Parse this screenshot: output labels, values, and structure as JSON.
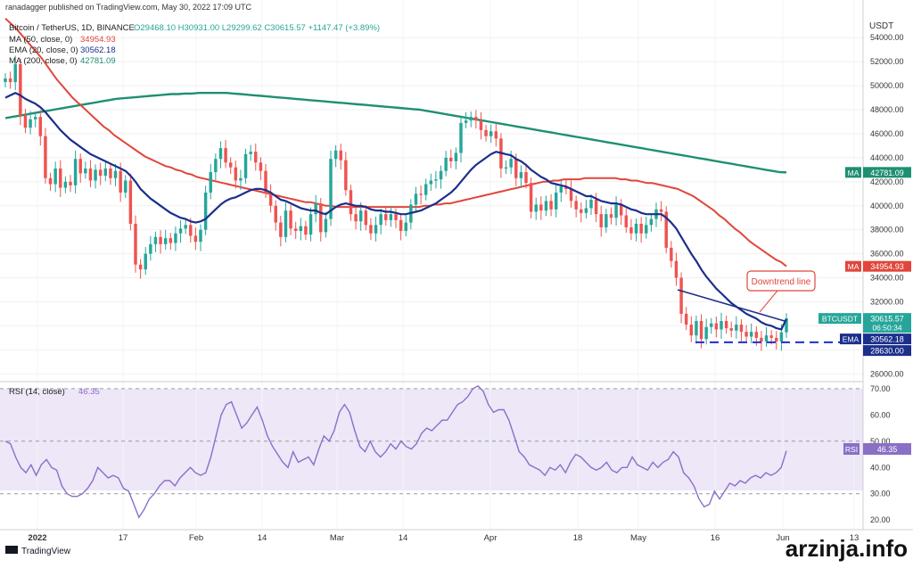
{
  "header": {
    "publisher": "ranadagger published on TradingView.com, May 30, 2022 17:09 UTC"
  },
  "legend": {
    "symbol": "Bitcoin / TetherUS, 1D, BINANCE",
    "ohlc": "O29468.10  H30931.00  L29299.62  C30615.57  +1147.47 (+3.89%)",
    "ma50": {
      "label": "MA (50, close, 0)",
      "value": "34954.93",
      "color": "#e0463a"
    },
    "ema20": {
      "label": "EMA (20, close, 0)",
      "value": "30562.18",
      "color": "#1b2f8c"
    },
    "ma200": {
      "label": "MA (200, close, 0)",
      "value": "42781.09",
      "color": "#1f8f72"
    }
  },
  "rsi_legend": {
    "label": "RSI (14, close)",
    "value": "46.35",
    "color": "#8a6fc7"
  },
  "annotation": {
    "label": "Downtrend line",
    "color": "#e0463a"
  },
  "axis": {
    "unit": "USDT",
    "x_ticks": [
      "2022",
      "17",
      "Feb",
      "14",
      "Mar",
      "14",
      "Apr",
      "18",
      "May",
      "16",
      "Jun",
      "13"
    ],
    "price_ticks": [
      "54000.00",
      "52000.00",
      "50000.00",
      "48000.00",
      "46000.00",
      "44000.00",
      "42000.00",
      "40000.00",
      "38000.00",
      "36000.00",
      "34000.00",
      "32000.00",
      "30000.00",
      "28000.00",
      "26000.00"
    ],
    "rsi_ticks": [
      "70.00",
      "60.00",
      "50.00",
      "40.00",
      "30.00",
      "20.00"
    ]
  },
  "price_labels": [
    {
      "tag": "MA",
      "value": "42781.09",
      "color": "#1f8f72"
    },
    {
      "tag": "MA",
      "value": "34954.93",
      "color": "#e0463a"
    },
    {
      "tag": "BTCUSDT",
      "value": "30615.57",
      "sub": "06:50:34",
      "color": "#26a69a"
    },
    {
      "tag": "EMA",
      "value": "30562.18",
      "color": "#1b2f8c"
    },
    {
      "tag": "",
      "value": "28630.00",
      "color": "#1b2f8c"
    }
  ],
  "rsi_label": {
    "tag": "RSI",
    "value": "46.35",
    "color": "#8a6fc7"
  },
  "footer": {
    "brand": "TradingView",
    "watermark": "arzinja.info"
  },
  "colors": {
    "up": "#26a69a",
    "down": "#ef5350",
    "support": "#1b2fd0",
    "downtrend": "#1b2f8c"
  },
  "chart_data": {
    "type": "line",
    "note_type": "candlestick",
    "unit": "USDT",
    "ylim": [
      25500,
      55800
    ],
    "rsi_ylim": [
      17,
      72
    ],
    "candles_close": [
      50600,
      50300,
      51800,
      47500,
      46500,
      47200,
      47400,
      45800,
      42300,
      41800,
      43100,
      41500,
      42000,
      41700,
      43900,
      42700,
      43100,
      42100,
      43000,
      42500,
      43100,
      42300,
      42900,
      41100,
      42100,
      38500,
      35100,
      34700,
      36000,
      36800,
      37400,
      36800,
      37300,
      36900,
      37700,
      38100,
      38400,
      37500,
      37000,
      38000,
      41100,
      42800,
      43900,
      44800,
      43600,
      43200,
      42100,
      42300,
      44300,
      44500,
      43600,
      42900,
      41100,
      40000,
      38600,
      37400,
      39600,
      38100,
      37900,
      38300,
      37600,
      39300,
      40200,
      37800,
      38900,
      43900,
      44600,
      43800,
      41300,
      39300,
      38700,
      39600,
      38400,
      37700,
      38400,
      39300,
      38800,
      39300,
      38800,
      37900,
      38600,
      40100,
      41000,
      40900,
      41800,
      42100,
      42200,
      42900,
      44000,
      43700,
      44400,
      46900,
      47100,
      47400,
      47100,
      46300,
      45800,
      46200,
      45600,
      43100,
      43200,
      43900,
      42300,
      42800,
      41900,
      39500,
      40100,
      39600,
      40400,
      39700,
      41100,
      41600,
      41400,
      40400,
      39700,
      39400,
      39800,
      40500,
      39300,
      38200,
      39300,
      39000,
      40100,
      39200,
      38200,
      37700,
      38500,
      37700,
      38400,
      38900,
      39700,
      39500,
      36500,
      35400,
      34000,
      31000,
      30100,
      29200,
      30400,
      28900,
      29900,
      30200,
      29700,
      30400,
      29800,
      29600,
      30100,
      29500,
      29100,
      29500,
      29000,
      28700,
      29200,
      29000,
      28700,
      29460,
      30615
    ],
    "ema20_close": [
      49000,
      49200,
      49400,
      49200,
      48900,
      48700,
      48500,
      48200,
      47800,
      47300,
      46800,
      46300,
      45900,
      45500,
      45200,
      44900,
      44600,
      44300,
      44100,
      43900,
      43700,
      43500,
      43300,
      43100,
      42900,
      42500,
      42000,
      41400,
      41000,
      40600,
      40300,
      40000,
      39700,
      39400,
      39200,
      39000,
      38900,
      38700,
      38600,
      38700,
      38900,
      39300,
      39700,
      40100,
      40400,
      40600,
      40700,
      40900,
      41100,
      41300,
      41400,
      41400,
      41300,
      41100,
      40800,
      40500,
      40400,
      40200,
      40000,
      39800,
      39700,
      39600,
      39600,
      39400,
      39300,
      39600,
      39900,
      40100,
      40200,
      40100,
      40000,
      40000,
      39900,
      39700,
      39600,
      39600,
      39500,
      39500,
      39400,
      39300,
      39300,
      39400,
      39500,
      39600,
      39800,
      40000,
      40200,
      40500,
      40800,
      41100,
      41500,
      42000,
      42500,
      43000,
      43400,
      43700,
      44000,
      44300,
      44500,
      44400,
      44300,
      44200,
      43900,
      43700,
      43400,
      43000,
      42700,
      42400,
      42200,
      41900,
      41800,
      41700,
      41600,
      41400,
      41200,
      41000,
      40800,
      40800,
      40600,
      40400,
      40300,
      40200,
      40200,
      40100,
      39900,
      39700,
      39600,
      39400,
      39300,
      39300,
      39300,
      39300,
      39000,
      38600,
      38100,
      37400,
      36700,
      36000,
      35400,
      34700,
      34100,
      33600,
      33100,
      32700,
      32300,
      31900,
      31600,
      31300,
      31000,
      30800,
      30600,
      30300,
      30100,
      30000,
      29800,
      29700,
      30562
    ],
    "ma50_close": [
      55600,
      55200,
      54800,
      54300,
      53800,
      53300,
      52800,
      52300,
      51700,
      51100,
      50500,
      50000,
      49500,
      49000,
      48600,
      48200,
      47800,
      47400,
      47000,
      46600,
      46300,
      45900,
      45600,
      45300,
      45000,
      44700,
      44400,
      44100,
      43900,
      43700,
      43500,
      43300,
      43200,
      43000,
      42900,
      42700,
      42600,
      42400,
      42300,
      42200,
      42100,
      42000,
      41900,
      41800,
      41700,
      41600,
      41500,
      41400,
      41300,
      41200,
      41100,
      41000,
      40900,
      40800,
      40700,
      40600,
      40500,
      40400,
      40300,
      40300,
      40200,
      40100,
      40000,
      40000,
      39900,
      39900,
      39900,
      39900,
      39900,
      39900,
      39900,
      39900,
      39900,
      39900,
      39900,
      39900,
      39900,
      39900,
      39900,
      39900,
      39900,
      40000,
      40000,
      40100,
      40100,
      40200,
      40200,
      40300,
      40400,
      40500,
      40600,
      40700,
      40800,
      40900,
      41000,
      41100,
      41200,
      41300,
      41400,
      41500,
      41600,
      41700,
      41800,
      41900,
      42000,
      42000,
      42100,
      42100,
      42200,
      42200,
      42200,
      42200,
      42300,
      42300,
      42300,
      42300,
      42300,
      42300,
      42300,
      42200,
      42200,
      42100,
      42100,
      42000,
      41900,
      41900,
      41800,
      41700,
      41600,
      41500,
      41400,
      41200,
      41000,
      40800,
      40500,
      40200,
      39900,
      39600,
      39200,
      38900,
      38500,
      38100,
      37800,
      37400,
      37000,
      36700,
      36400,
      36100,
      35800,
      35500,
      35300,
      34954
    ],
    "ma200_close": [
      47300,
      47400,
      47500,
      47600,
      47700,
      47800,
      47900,
      48000,
      48100,
      48200,
      48300,
      48400,
      48500,
      48600,
      48700,
      48800,
      48900,
      48950,
      49000,
      49050,
      49100,
      49150,
      49200,
      49250,
      49300,
      49300,
      49350,
      49350,
      49400,
      49400,
      49400,
      49400,
      49400,
      49350,
      49300,
      49250,
      49200,
      49150,
      49100,
      49050,
      49000,
      48950,
      48900,
      48850,
      48800,
      48750,
      48700,
      48650,
      48600,
      48550,
      48500,
      48450,
      48400,
      48350,
      48300,
      48250,
      48200,
      48150,
      48100,
      48050,
      48000,
      47900,
      47800,
      47700,
      47600,
      47500,
      47400,
      47300,
      47200,
      47100,
      47000,
      46900,
      46800,
      46700,
      46600,
      46500,
      46400,
      46300,
      46200,
      46100,
      46000,
      45900,
      45800,
      45700,
      45600,
      45500,
      45400,
      45300,
      45200,
      45100,
      45000,
      44900,
      44800,
      44700,
      44600,
      44500,
      44400,
      44300,
      44200,
      44100,
      44000,
      43900,
      43800,
      43700,
      43600,
      43500,
      43400,
      43300,
      43200,
      43100,
      43000,
      42900,
      42800,
      42781
    ],
    "support_level": 28630,
    "rsi": [
      50,
      49,
      44,
      40,
      38,
      41,
      37,
      41,
      43,
      40,
      39,
      33,
      30,
      29,
      29,
      30,
      32,
      35,
      40,
      38,
      36,
      37,
      36,
      32,
      31,
      26,
      21,
      24,
      28,
      30,
      33,
      35,
      35,
      33,
      36,
      38,
      40,
      38,
      37,
      38,
      44,
      52,
      60,
      64,
      65,
      60,
      55,
      57,
      60,
      63,
      58,
      52,
      48,
      45,
      42,
      40,
      46,
      42,
      43,
      44,
      41,
      47,
      52,
      50,
      54,
      61,
      64,
      61,
      54,
      48,
      46,
      50,
      46,
      44,
      46,
      49,
      47,
      50,
      48,
      47,
      49,
      53,
      55,
      54,
      56,
      58,
      58,
      61,
      64,
      65,
      67,
      70,
      71,
      69,
      64,
      61,
      62,
      62,
      58,
      52,
      46,
      44,
      41,
      40,
      39,
      37,
      40,
      39,
      41,
      38,
      42,
      45,
      44,
      42,
      40,
      39,
      40,
      42,
      39,
      38,
      40,
      40,
      44,
      41,
      40,
      39,
      42,
      40,
      42,
      43,
      46,
      44,
      38,
      36,
      33,
      28,
      25,
      26,
      31,
      28,
      31,
      34,
      33,
      35,
      34,
      36,
      37,
      36,
      38,
      37,
      38,
      40,
      46.35
    ]
  }
}
